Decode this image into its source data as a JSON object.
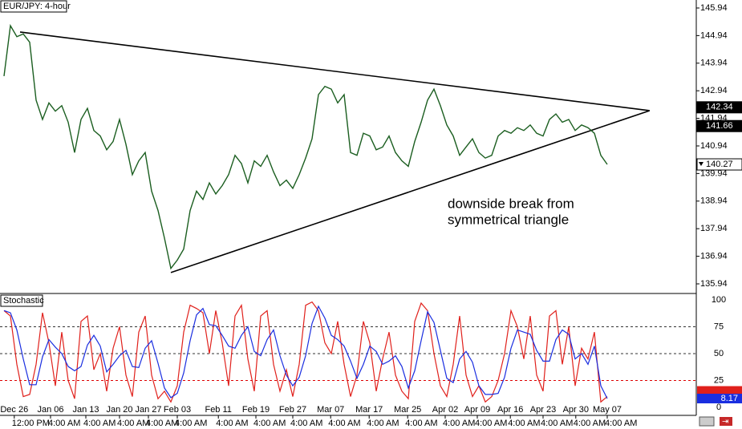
{
  "chart_data": [
    {
      "type": "line",
      "title": "EUR/JPY: 4-hour",
      "color": "#1b5e20",
      "x": [
        0,
        1,
        2,
        3,
        4,
        5,
        6,
        7,
        8,
        9,
        10,
        11,
        12,
        13,
        14,
        15,
        16,
        17,
        18,
        19,
        20,
        21,
        22,
        23,
        24,
        25,
        26,
        27,
        28,
        29,
        30,
        31,
        32,
        33,
        34,
        35,
        36,
        37,
        38,
        39,
        40,
        41,
        42,
        43,
        44,
        45,
        46,
        47,
        48,
        49,
        50,
        51,
        52,
        53,
        54,
        55,
        56,
        57,
        58,
        59,
        60,
        61,
        62,
        63,
        64,
        65,
        66,
        67,
        68,
        69,
        70,
        71,
        72,
        73,
        74,
        75,
        76,
        77,
        78,
        79,
        80,
        81,
        82,
        83,
        84,
        85,
        86,
        87,
        88,
        89,
        90,
        91,
        92,
        93,
        94
      ],
      "values": [
        143.47,
        145.3,
        144.9,
        145.0,
        144.7,
        142.6,
        141.9,
        142.5,
        142.2,
        142.4,
        141.8,
        140.7,
        141.9,
        142.3,
        141.5,
        141.3,
        140.8,
        141.1,
        141.9,
        141.0,
        139.9,
        140.4,
        140.7,
        139.3,
        138.6,
        137.6,
        136.5,
        136.8,
        137.2,
        138.6,
        139.3,
        139.0,
        139.6,
        139.2,
        139.5,
        139.9,
        140.6,
        140.3,
        139.6,
        140.4,
        140.2,
        140.6,
        140.0,
        139.5,
        139.7,
        139.4,
        139.9,
        140.5,
        141.2,
        142.8,
        143.1,
        143.0,
        142.5,
        142.8,
        140.7,
        140.6,
        141.4,
        141.3,
        140.8,
        140.9,
        141.3,
        140.7,
        140.4,
        140.2,
        141.1,
        141.8,
        142.6,
        143.0,
        142.4,
        141.7,
        141.3,
        140.6,
        140.9,
        141.2,
        140.7,
        140.5,
        140.6,
        141.3,
        141.5,
        141.4,
        141.6,
        141.5,
        141.7,
        141.4,
        141.3,
        141.9,
        142.1,
        141.8,
        141.9,
        141.5,
        141.7,
        141.6,
        141.4,
        140.6,
        140.27
      ],
      "xlim": [
        -0.625,
        107.875
      ],
      "ylim": [
        135.62,
        146.23
      ],
      "yticks": [
        135.94,
        136.94,
        137.94,
        138.94,
        139.94,
        140.94,
        141.94,
        142.94,
        143.94,
        144.94,
        145.94
      ],
      "trendlines": [
        {
          "x": [
            2.5,
            100.6
          ],
          "y": [
            145.07,
            142.22
          ]
        },
        {
          "x": [
            26,
            100.6
          ],
          "y": [
            136.35,
            142.22
          ]
        }
      ],
      "price_markers": [
        142.34,
        141.66,
        140.27
      ],
      "annotation": [
        "downside break from",
        "symmetrical triangle"
      ]
    },
    {
      "type": "stochastic",
      "title": "Stochastic",
      "series": [
        {
          "color": "#e0201b",
          "values": [
            90,
            85,
            40,
            10,
            12,
            40,
            88,
            60,
            20,
            70,
            25,
            8,
            80,
            85,
            35,
            50,
            15,
            55,
            75,
            30,
            10,
            70,
            85,
            30,
            8,
            15,
            5,
            20,
            70,
            95,
            92,
            88,
            50,
            90,
            60,
            20,
            85,
            95,
            45,
            15,
            85,
            90,
            40,
            15,
            35,
            10,
            40,
            95,
            98,
            90,
            60,
            50,
            80,
            40,
            10,
            30,
            80,
            60,
            15,
            45,
            70,
            30,
            15,
            8,
            80,
            97,
            90,
            50,
            20,
            10,
            40,
            85,
            30,
            10,
            20,
            5,
            10,
            25,
            50,
            90,
            75,
            45,
            85,
            30,
            15,
            85,
            90,
            40,
            75,
            20,
            55,
            45,
            70,
            5,
            10
          ]
        },
        {
          "color": "#1a2ee0",
          "values": [
            90,
            88,
            72,
            45,
            21,
            21,
            47,
            63,
            56,
            50,
            38,
            34,
            38,
            58,
            67,
            57,
            33,
            40,
            48,
            53,
            38,
            37,
            55,
            62,
            41,
            18,
            9,
            13,
            32,
            62,
            86,
            92,
            77,
            76,
            67,
            57,
            55,
            67,
            75,
            52,
            48,
            63,
            72,
            48,
            30,
            20,
            28,
            48,
            78,
            94,
            83,
            67,
            63,
            57,
            43,
            27,
            40,
            57,
            52,
            40,
            43,
            48,
            38,
            18,
            34,
            62,
            89,
            79,
            53,
            27,
            23,
            45,
            52,
            42,
            20,
            12,
            12,
            13,
            28,
            55,
            72,
            70,
            68,
            53,
            43,
            43,
            63,
            72,
            68,
            45,
            50,
            40,
            57,
            20,
            8.17
          ]
        }
      ],
      "xlim": [
        -0.625,
        107.875
      ],
      "ylim": [
        -7.5,
        105.2
      ],
      "yticks": [
        0,
        25,
        50,
        75,
        100
      ],
      "xticks": [
        {
          "value": 1.6,
          "label": "Dec 26"
        },
        {
          "value": 7.25,
          "label": "Jan 06"
        },
        {
          "value": 12.75,
          "label": "Jan 13"
        },
        {
          "value": 18,
          "label": "Jan 20"
        },
        {
          "value": 22.5,
          "label": "Jan 27"
        },
        {
          "value": 27,
          "label": "Feb 03"
        },
        {
          "value": 33.4,
          "label": "Feb 11"
        },
        {
          "value": 39.25,
          "label": "Feb 19"
        },
        {
          "value": 45,
          "label": "Feb 27"
        },
        {
          "value": 50.9,
          "label": "Mar 07"
        },
        {
          "value": 56.9,
          "label": "Mar 17"
        },
        {
          "value": 62.9,
          "label": "Mar 25"
        },
        {
          "value": 68.75,
          "label": "Apr 02"
        },
        {
          "value": 73.75,
          "label": "Apr 09"
        },
        {
          "value": 78.9,
          "label": "Apr 16"
        },
        {
          "value": 84,
          "label": "Apr 23"
        },
        {
          "value": 89.1,
          "label": "Apr 30"
        },
        {
          "value": 94,
          "label": "May 07"
        }
      ],
      "time_labels": [
        "12:00 PM",
        "4:00 AM",
        "4:00 AM",
        "4:00 AM",
        "4:00 AM",
        "4:00 AM",
        "4:00 AM",
        "4:00 AM",
        "4:00 AM",
        "4:00 AM",
        "4:00 AM",
        "4:00 AM",
        "4:00 AM",
        "4:00 AM",
        "4:00 AM",
        "4:00 AM",
        "4:00 AM",
        "4:00 AM"
      ],
      "value_label": 8.17
    }
  ]
}
